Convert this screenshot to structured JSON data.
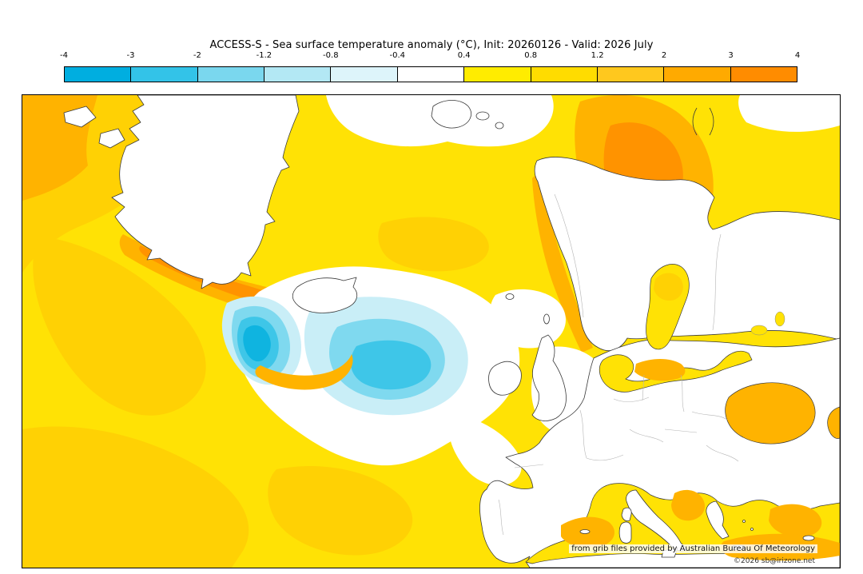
{
  "title": "ACCESS-S - Sea surface temperature anomaly (°C), Init: 20260126 - Valid: 2026 July",
  "colorbar": {
    "units": "°C",
    "tick_labels": [
      "-4",
      "-3",
      "-2",
      "-1.2",
      "-0.8",
      "-0.4",
      "0.4",
      "0.8",
      "1.2",
      "2",
      "3",
      "4"
    ],
    "segment_colors": [
      "#00aee0",
      "#33c3e8",
      "#7ad7ee",
      "#b3e8f4",
      "#ddf4fa",
      "#ffffff",
      "#ffec00",
      "#ffdc00",
      "#ffc81e",
      "#ffaa00",
      "#ff8c00"
    ]
  },
  "map_palette": {
    "ocean_warm_yellow": "#ffe205",
    "warm_amber": "#ffd104",
    "warm_orange": "#ffb300",
    "strong_orange": "#ff9300",
    "neutral_white": "#ffffff",
    "cool_light": "#c9eef7",
    "cool_mid": "#7fd9ef",
    "cool_strong": "#3ec6e8",
    "cool_core": "#0fb4e0"
  },
  "credits": {
    "line1": "from grib files provided by Australian Bureau Of Meteorology",
    "line2": "©2026 sb@irizone.net"
  }
}
